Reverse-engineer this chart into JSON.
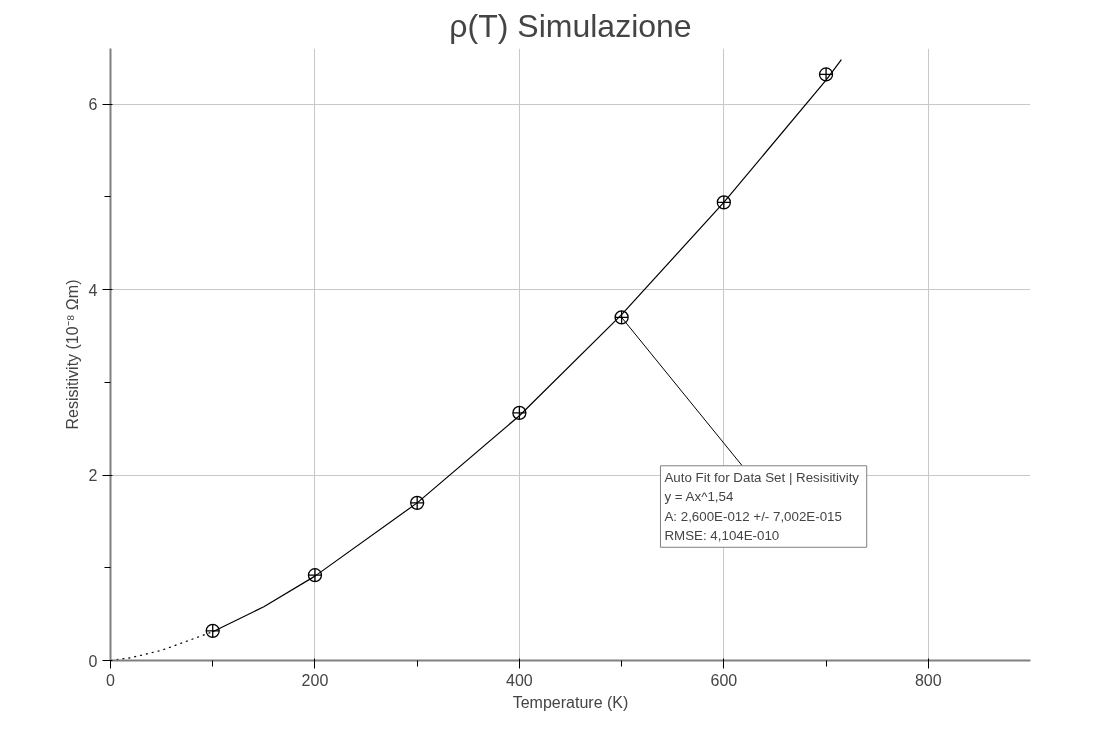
{
  "chart_data": {
    "type": "scatter",
    "title": "ρ(T) Simulazione",
    "xlabel": "Temperature (K)",
    "ylabel": "Resisitivity (10⁻⁸ Ωm)",
    "xlim": [
      0,
      900
    ],
    "ylim": [
      0,
      6.6
    ],
    "xticks": [
      0,
      {
        "value": 100,
        "label": null
      },
      200,
      {
        "value": 300,
        "label": null
      },
      400,
      {
        "value": 500,
        "label": null
      },
      600,
      {
        "value": 700,
        "label": null
      },
      800
    ],
    "yticks": [
      0,
      {
        "value": 1,
        "label": null
      },
      2,
      {
        "value": 3,
        "label": null
      },
      4,
      {
        "value": 5,
        "label": null
      },
      6
    ],
    "grid": true,
    "series": [
      {
        "color": "#000000",
        "marker": "circle",
        "x": [
          100,
          200,
          300,
          400,
          500,
          600,
          700
        ],
        "values": [
          0.32,
          0.92,
          1.7,
          2.67,
          3.7,
          4.94,
          6.32
        ]
      },
      {
        "type": "line",
        "color": "#000000",
        "line_style": "dotted",
        "marker": "none",
        "x": [
          0,
          20,
          50,
          100
        ],
        "values": [
          0,
          0.03,
          0.11,
          0.31
        ]
      },
      {
        "type": "line",
        "color": "#000000",
        "line_style": "solid",
        "marker": "none",
        "x": [
          100,
          150,
          200,
          300,
          400,
          500,
          600,
          700,
          715
        ],
        "values": [
          0.31,
          0.58,
          0.91,
          1.7,
          2.64,
          3.73,
          4.94,
          6.26,
          6.48
        ]
      }
    ],
    "annotations": [
      {
        "text": "Auto Fit for  Data Set | Resisitivity\ny = Ax^1,54\nA: 2,600E-012 +/- 7,002E-015\nRMSE: 4,104E-010",
        "x": 500,
        "y": 3.7
      }
    ]
  }
}
